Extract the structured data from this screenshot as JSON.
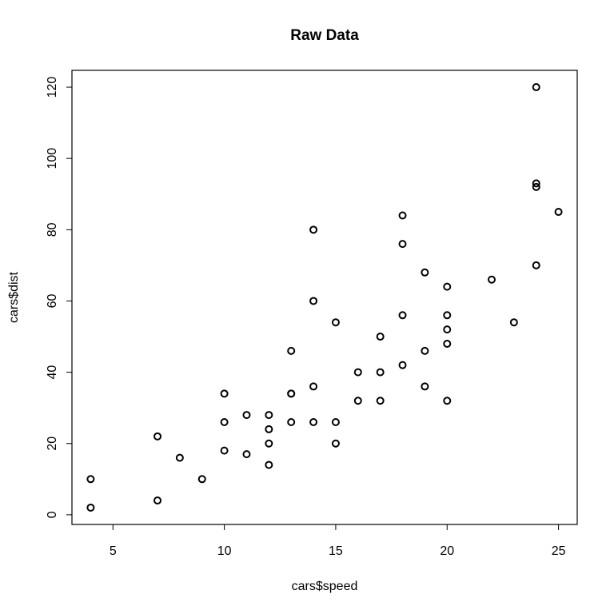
{
  "chart_data": {
    "type": "scatter",
    "title": "Raw Data",
    "x_label": "cars$speed",
    "y_label": "cars$dist",
    "x": [
      4,
      4,
      7,
      7,
      8,
      9,
      10,
      10,
      10,
      11,
      11,
      12,
      12,
      12,
      12,
      13,
      13,
      13,
      13,
      14,
      14,
      14,
      14,
      15,
      15,
      15,
      16,
      16,
      17,
      17,
      17,
      18,
      18,
      18,
      18,
      19,
      19,
      19,
      20,
      20,
      20,
      20,
      20,
      22,
      23,
      24,
      24,
      24,
      24,
      25
    ],
    "values": [
      2,
      10,
      4,
      22,
      16,
      10,
      18,
      26,
      34,
      17,
      28,
      14,
      20,
      24,
      28,
      26,
      34,
      34,
      46,
      26,
      36,
      60,
      80,
      20,
      26,
      54,
      32,
      40,
      32,
      40,
      50,
      42,
      56,
      76,
      84,
      36,
      46,
      68,
      32,
      48,
      52,
      56,
      64,
      66,
      54,
      70,
      92,
      93,
      120,
      85
    ],
    "color": "#000000",
    "xlim": [
      3.16,
      25.84
    ],
    "xticks": [
      5,
      10,
      15,
      20,
      25
    ],
    "ylim": [
      -2.72,
      124.72
    ],
    "yticks": [
      0,
      20,
      40,
      60,
      80,
      100,
      120
    ]
  }
}
